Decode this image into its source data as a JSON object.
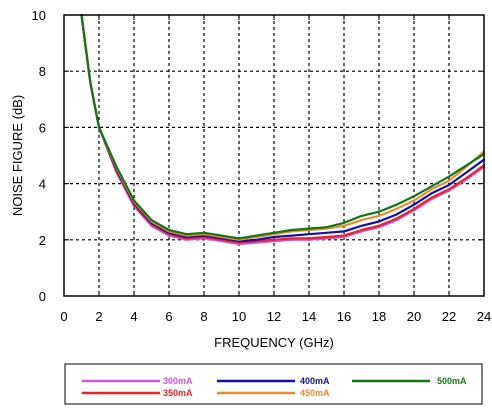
{
  "chart_data": {
    "type": "line",
    "xlabel": "FREQUENCY (GHz)",
    "ylabel": "NOISE FIGURE (dB)",
    "xlim": [
      0,
      24
    ],
    "ylim": [
      0,
      10
    ],
    "xticks": [
      0,
      2,
      4,
      6,
      8,
      10,
      12,
      14,
      16,
      18,
      20,
      22,
      24
    ],
    "yticks": [
      0,
      2,
      4,
      6,
      8,
      10
    ],
    "grid": true,
    "grid_style": "dotted",
    "legend_position": "bottom",
    "series": [
      {
        "name": "300mA",
        "color": "#cc55dd",
        "x": [
          1,
          1.5,
          2,
          3,
          4,
          5,
          6,
          7,
          8,
          9,
          10,
          11,
          12,
          13,
          14,
          15,
          16,
          17,
          18,
          19,
          20,
          21,
          22,
          23,
          24
        ],
        "y": [
          10,
          7.6,
          6.0,
          4.4,
          3.2,
          2.5,
          2.15,
          2.0,
          2.05,
          1.95,
          1.85,
          1.9,
          1.95,
          2.0,
          2.0,
          2.05,
          2.1,
          2.3,
          2.45,
          2.7,
          3.05,
          3.45,
          3.75,
          4.15,
          4.6
        ]
      },
      {
        "name": "350mA",
        "color": "#ee2222",
        "x": [
          1,
          1.5,
          2,
          3,
          4,
          5,
          6,
          7,
          8,
          9,
          10,
          11,
          12,
          13,
          14,
          15,
          16,
          17,
          18,
          19,
          20,
          21,
          22,
          23,
          24
        ],
        "y": [
          10,
          7.6,
          6.0,
          4.45,
          3.25,
          2.55,
          2.2,
          2.05,
          2.1,
          2.0,
          1.9,
          1.95,
          2.0,
          2.05,
          2.05,
          2.1,
          2.15,
          2.35,
          2.5,
          2.75,
          3.1,
          3.5,
          3.8,
          4.2,
          4.65
        ]
      },
      {
        "name": "400mA",
        "color": "#1111aa",
        "x": [
          1,
          1.5,
          2,
          3,
          4,
          5,
          6,
          7,
          8,
          9,
          10,
          11,
          12,
          13,
          14,
          15,
          16,
          17,
          18,
          19,
          20,
          21,
          22,
          23,
          24
        ],
        "y": [
          10,
          7.6,
          6.0,
          4.5,
          3.3,
          2.6,
          2.25,
          2.1,
          2.15,
          2.05,
          1.95,
          2.0,
          2.1,
          2.15,
          2.2,
          2.25,
          2.3,
          2.5,
          2.65,
          2.9,
          3.25,
          3.65,
          3.95,
          4.4,
          4.85
        ]
      },
      {
        "name": "450mA",
        "color": "#ee8833",
        "x": [
          1,
          1.5,
          2,
          3,
          4,
          5,
          6,
          7,
          8,
          9,
          10,
          11,
          12,
          13,
          14,
          15,
          16,
          17,
          18,
          19,
          20,
          21,
          22,
          23,
          24
        ],
        "y": [
          10,
          7.6,
          6.0,
          4.55,
          3.35,
          2.65,
          2.3,
          2.15,
          2.2,
          2.1,
          2.0,
          2.1,
          2.2,
          2.3,
          2.35,
          2.4,
          2.5,
          2.7,
          2.85,
          3.1,
          3.4,
          3.8,
          4.1,
          4.6,
          5.15
        ]
      },
      {
        "name": "500mA",
        "color": "#117711",
        "x": [
          1,
          1.5,
          2,
          3,
          4,
          5,
          6,
          7,
          8,
          9,
          10,
          11,
          12,
          13,
          14,
          15,
          16,
          17,
          18,
          19,
          20,
          21,
          22,
          23,
          24
        ],
        "y": [
          10,
          7.6,
          6.0,
          4.6,
          3.4,
          2.7,
          2.35,
          2.2,
          2.25,
          2.15,
          2.05,
          2.15,
          2.25,
          2.35,
          2.4,
          2.45,
          2.6,
          2.85,
          3.0,
          3.25,
          3.55,
          3.9,
          4.25,
          4.65,
          5.05
        ]
      }
    ]
  }
}
